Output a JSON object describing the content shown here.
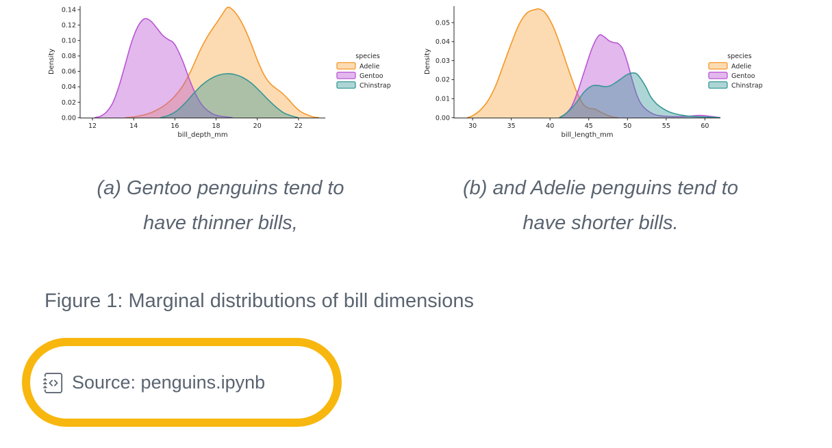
{
  "captions": {
    "a": {
      "line1": "(a) Gentoo penguins tend to",
      "line2": "have thinner bills,"
    },
    "b": {
      "line1": "(b) and Adelie penguins tend to",
      "line2": "have shorter bills."
    }
  },
  "figure_caption": "Figure 1: Marginal distributions of bill dimensions",
  "source": {
    "label": "Source: penguins.ipynb",
    "icon": "journal-code-icon"
  },
  "colors": {
    "annotation_marker": "#F8B70E",
    "caption_text": "#5a6470",
    "chart_text": "#262626"
  },
  "chart_data": [
    {
      "type": "area",
      "subtype": "kde",
      "title": "",
      "xlabel": "bill_depth_mm",
      "ylabel": "Density",
      "xlim": [
        11.4,
        23.3
      ],
      "ylim": [
        0,
        0.1455
      ],
      "xticks": [
        12,
        14,
        16,
        18,
        20,
        22
      ],
      "yticks": [
        0.0,
        0.02,
        0.04,
        0.06,
        0.08,
        0.1,
        0.12,
        0.14
      ],
      "ytick_decimals": 2,
      "grid": false,
      "legend_title": "species",
      "legend_position": "right",
      "series": [
        {
          "name": "Adelie",
          "color": "#f59725",
          "fill_alpha": 0.35,
          "points": [
            [
              13.6,
              0
            ],
            [
              14.0,
              0.001
            ],
            [
              14.4,
              0.003
            ],
            [
              14.8,
              0.006
            ],
            [
              15.2,
              0.011
            ],
            [
              15.6,
              0.018
            ],
            [
              16.0,
              0.028
            ],
            [
              16.4,
              0.042
            ],
            [
              16.8,
              0.062
            ],
            [
              17.2,
              0.086
            ],
            [
              17.6,
              0.106
            ],
            [
              18.0,
              0.122
            ],
            [
              18.3,
              0.134
            ],
            [
              18.55,
              0.143
            ],
            [
              18.8,
              0.14
            ],
            [
              19.1,
              0.13
            ],
            [
              19.4,
              0.115
            ],
            [
              19.7,
              0.096
            ],
            [
              20.0,
              0.075
            ],
            [
              20.3,
              0.057
            ],
            [
              20.6,
              0.045
            ],
            [
              20.9,
              0.038
            ],
            [
              21.2,
              0.032
            ],
            [
              21.5,
              0.024
            ],
            [
              21.8,
              0.015
            ],
            [
              22.1,
              0.008
            ],
            [
              22.4,
              0.004
            ],
            [
              22.7,
              0.001
            ],
            [
              23.0,
              0
            ]
          ]
        },
        {
          "name": "Gentoo",
          "color": "#ba55d3",
          "fill_alpha": 0.42,
          "points": [
            [
              12.1,
              0
            ],
            [
              12.4,
              0.002
            ],
            [
              12.7,
              0.008
            ],
            [
              13.0,
              0.02
            ],
            [
              13.3,
              0.042
            ],
            [
              13.6,
              0.07
            ],
            [
              13.9,
              0.098
            ],
            [
              14.2,
              0.118
            ],
            [
              14.5,
              0.128
            ],
            [
              14.8,
              0.126
            ],
            [
              15.1,
              0.117
            ],
            [
              15.4,
              0.107
            ],
            [
              15.7,
              0.101
            ],
            [
              15.9,
              0.098
            ],
            [
              16.1,
              0.09
            ],
            [
              16.4,
              0.072
            ],
            [
              16.7,
              0.05
            ],
            [
              17.0,
              0.031
            ],
            [
              17.3,
              0.017
            ],
            [
              17.6,
              0.009
            ],
            [
              17.9,
              0.004
            ],
            [
              18.2,
              0.002
            ],
            [
              18.5,
              0.001
            ],
            [
              18.8,
              0
            ]
          ]
        },
        {
          "name": "Chinstrap",
          "color": "#349795",
          "fill_alpha": 0.4,
          "points": [
            [
              15.3,
              0
            ],
            [
              15.7,
              0.003
            ],
            [
              16.1,
              0.009
            ],
            [
              16.5,
              0.019
            ],
            [
              16.9,
              0.031
            ],
            [
              17.3,
              0.042
            ],
            [
              17.7,
              0.05
            ],
            [
              18.1,
              0.055
            ],
            [
              18.5,
              0.057
            ],
            [
              18.9,
              0.056
            ],
            [
              19.3,
              0.052
            ],
            [
              19.7,
              0.045
            ],
            [
              20.1,
              0.035
            ],
            [
              20.5,
              0.024
            ],
            [
              20.9,
              0.014
            ],
            [
              21.3,
              0.006
            ],
            [
              21.7,
              0.002
            ],
            [
              22.0,
              0
            ]
          ]
        }
      ]
    },
    {
      "type": "area",
      "subtype": "kde",
      "title": "",
      "xlabel": "bill_length_mm",
      "ylabel": "Density",
      "xlim": [
        27.6,
        62.0
      ],
      "ylim": [
        0,
        0.059
      ],
      "xticks": [
        30,
        35,
        40,
        45,
        50,
        55,
        60
      ],
      "yticks": [
        0.0,
        0.01,
        0.02,
        0.03,
        0.04,
        0.05
      ],
      "ytick_decimals": 2,
      "grid": false,
      "legend_title": "species",
      "legend_position": "right",
      "series": [
        {
          "name": "Adelie",
          "color": "#f59725",
          "fill_alpha": 0.35,
          "points": [
            [
              29.3,
              0
            ],
            [
              30.0,
              0.001
            ],
            [
              31.0,
              0.004
            ],
            [
              32.0,
              0.009
            ],
            [
              33.0,
              0.017
            ],
            [
              34.0,
              0.028
            ],
            [
              35.0,
              0.039
            ],
            [
              36.0,
              0.049
            ],
            [
              37.0,
              0.055
            ],
            [
              38.0,
              0.0568
            ],
            [
              38.7,
              0.057
            ],
            [
              39.5,
              0.0545
            ],
            [
              40.5,
              0.047
            ],
            [
              41.5,
              0.036
            ],
            [
              42.5,
              0.024
            ],
            [
              43.5,
              0.013
            ],
            [
              44.3,
              0.007
            ],
            [
              45.0,
              0.005
            ],
            [
              45.8,
              0.0045
            ],
            [
              46.5,
              0.003
            ],
            [
              47.3,
              0.0015
            ],
            [
              48.0,
              0.0005
            ],
            [
              48.8,
              0
            ]
          ]
        },
        {
          "name": "Gentoo",
          "color": "#ba55d3",
          "fill_alpha": 0.42,
          "points": [
            [
              41.3,
              0
            ],
            [
              42.0,
              0.002
            ],
            [
              42.8,
              0.006
            ],
            [
              43.6,
              0.014
            ],
            [
              44.4,
              0.024
            ],
            [
              45.2,
              0.034
            ],
            [
              45.8,
              0.04
            ],
            [
              46.4,
              0.0435
            ],
            [
              47.0,
              0.0425
            ],
            [
              47.6,
              0.0405
            ],
            [
              48.2,
              0.0395
            ],
            [
              48.8,
              0.039
            ],
            [
              49.4,
              0.036
            ],
            [
              50.0,
              0.029
            ],
            [
              50.6,
              0.02
            ],
            [
              51.2,
              0.012
            ],
            [
              51.8,
              0.007
            ],
            [
              52.5,
              0.004
            ],
            [
              53.3,
              0.002
            ],
            [
              54.2,
              0.001
            ],
            [
              55.5,
              0.0006
            ],
            [
              57.0,
              0.0006
            ],
            [
              58.3,
              0.0009
            ],
            [
              59.3,
              0.0012
            ],
            [
              60.3,
              0.0009
            ],
            [
              61.3,
              0.0004
            ],
            [
              62.0,
              0
            ]
          ]
        },
        {
          "name": "Chinstrap",
          "color": "#349795",
          "fill_alpha": 0.4,
          "points": [
            [
              41.2,
              0
            ],
            [
              42.0,
              0.002
            ],
            [
              42.8,
              0.005
            ],
            [
              43.6,
              0.009
            ],
            [
              44.4,
              0.0135
            ],
            [
              45.1,
              0.016
            ],
            [
              45.7,
              0.017
            ],
            [
              46.4,
              0.0168
            ],
            [
              47.1,
              0.0163
            ],
            [
              47.8,
              0.0168
            ],
            [
              48.5,
              0.0185
            ],
            [
              49.2,
              0.0205
            ],
            [
              49.9,
              0.0225
            ],
            [
              50.6,
              0.0235
            ],
            [
              51.2,
              0.023
            ],
            [
              51.8,
              0.02
            ],
            [
              52.4,
              0.016
            ],
            [
              53.0,
              0.011
            ],
            [
              53.7,
              0.0075
            ],
            [
              54.5,
              0.005
            ],
            [
              55.4,
              0.003
            ],
            [
              56.4,
              0.0018
            ],
            [
              57.5,
              0.001
            ],
            [
              59.0,
              0.0005
            ],
            [
              60.5,
              0.0003
            ],
            [
              62.0,
              0
            ]
          ]
        }
      ]
    }
  ]
}
